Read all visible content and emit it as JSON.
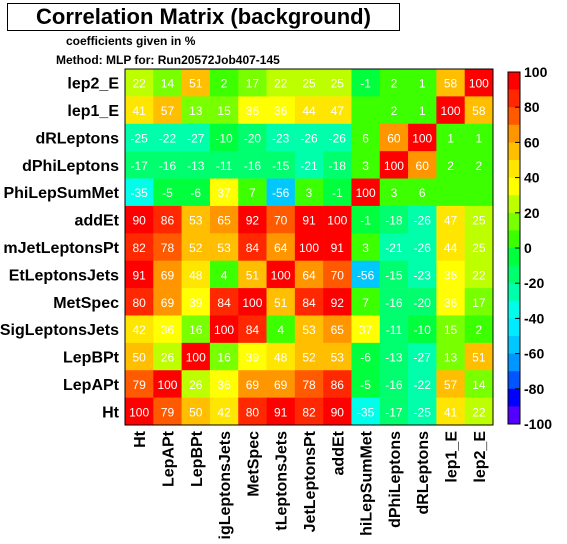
{
  "header": {
    "title": "Correlation Matrix (background)",
    "subtitle": "coefficients given in %",
    "method": "Method: MLP for: Run20572Job407-145"
  },
  "chart_data": {
    "type": "heatmap",
    "title": "Correlation Matrix (background)",
    "variables": [
      "Ht",
      "LepAPt",
      "LepBPt",
      "SigLeptonsJets",
      "MetSpec",
      "SumEtLeptonsJets",
      "VSumJetLeptonsPt",
      "addEt",
      "DPhiLepSumMet",
      "dPhiLeptons",
      "dRLeptons",
      "lep1_E",
      "lep2_E"
    ],
    "row_labels_visible": [
      "lep2_E",
      "lep1_E",
      "dRLeptons",
      "dPhiLeptons",
      "PhiLepSumMet",
      "addEt",
      "mJetLeptonsPt",
      "EtLeptonsJets",
      "MetSpec",
      "SigLeptonsJets",
      "LepBPt",
      "LepAPt",
      "Ht"
    ],
    "col_labels_visible": [
      "Ht",
      "LepAPt",
      "LepBPt",
      "igLeptonsJets",
      "MetSpec",
      "tLeptonsJets",
      "JetLeptonsPt",
      "addEt",
      "hiLepSumMet",
      "dPhiLeptons",
      "dRLeptons",
      "lep1_E",
      "lep2_E"
    ],
    "rows_top_to_bottom": [
      [
        "22",
        "14",
        "51",
        "2",
        "17",
        "22",
        "25",
        "25",
        "-1",
        "2",
        "1",
        "58",
        "100"
      ],
      [
        "41",
        "57",
        "13",
        "15",
        "36",
        "36",
        "44",
        "47",
        "",
        "2",
        "1",
        "100",
        "58"
      ],
      [
        "-25",
        "-22",
        "-27",
        "-10",
        "-20",
        "-23",
        "-26",
        "-26",
        "6",
        "60",
        "100",
        "1",
        "1"
      ],
      [
        "-17",
        "-16",
        "-13",
        "-11",
        "-16",
        "-15",
        "-21",
        "-18",
        "3",
        "100",
        "60",
        "2",
        "2"
      ],
      [
        "-35",
        "-5",
        "-6",
        "37",
        "7",
        "-56",
        "3",
        "-1",
        "100",
        "3",
        "6",
        "",
        ""
      ],
      [
        "90",
        "86",
        "53",
        "65",
        "92",
        "70",
        "91",
        "100",
        "-1",
        "-18",
        "-26",
        "47",
        "25"
      ],
      [
        "82",
        "78",
        "52",
        "53",
        "84",
        "64",
        "100",
        "91",
        "3",
        "-21",
        "-26",
        "44",
        "25"
      ],
      [
        "91",
        "69",
        "48",
        "4",
        "51",
        "100",
        "64",
        "70",
        "-56",
        "-15",
        "-23",
        "36",
        "22"
      ],
      [
        "80",
        "69",
        "39",
        "84",
        "100",
        "51",
        "84",
        "92",
        "7",
        "-16",
        "-20",
        "36",
        "17"
      ],
      [
        "42",
        "36",
        "16",
        "100",
        "84",
        "4",
        "53",
        "65",
        "37",
        "-11",
        "-10",
        "15",
        "2"
      ],
      [
        "50",
        "26",
        "100",
        "16",
        "39",
        "48",
        "52",
        "53",
        "-6",
        "-13",
        "-27",
        "13",
        "51"
      ],
      [
        "79",
        "100",
        "26",
        "36",
        "69",
        "69",
        "78",
        "86",
        "-5",
        "-16",
        "-22",
        "57",
        "14"
      ],
      [
        "100",
        "79",
        "50",
        "42",
        "80",
        "91",
        "82",
        "90",
        "-35",
        "-17",
        "-25",
        "41",
        "22"
      ]
    ],
    "colorbar": {
      "range": [
        -100,
        100
      ],
      "ticks": [
        "100",
        "80",
        "60",
        "40",
        "20",
        "0",
        "-20",
        "-40",
        "-60",
        "-80",
        "-100"
      ]
    }
  }
}
